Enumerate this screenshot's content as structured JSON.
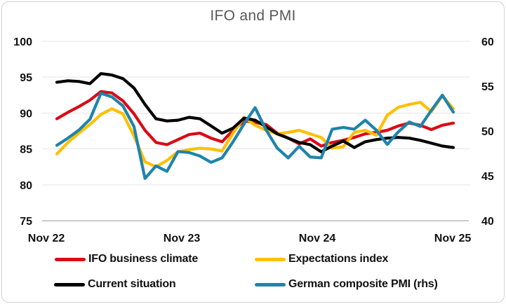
{
  "title": "IFO and PMI",
  "chart_data": {
    "type": "line",
    "title": "IFO and PMI",
    "x": [
      "Nov 22",
      "Dec 22",
      "Jan 23",
      "Feb 23",
      "Mar 23",
      "Apr 23",
      "May 23",
      "Jun 23",
      "Jul 23",
      "Aug 23",
      "Sep 23",
      "Oct 23",
      "Nov 23",
      "Dec 23",
      "Jan 24",
      "Feb 24",
      "Mar 24",
      "Apr 24",
      "May 24",
      "Jun 24",
      "Jul 24",
      "Aug 24",
      "Sep 24",
      "Oct 24",
      "Nov 24",
      "Dec 24",
      "Jan 25",
      "Feb 25",
      "Mar 25",
      "Apr 25",
      "May 25",
      "Jun 25",
      "Jul 25",
      "Aug 25",
      "Sep 25",
      "Oct 25",
      "Nov 25"
    ],
    "x_axis_tick_labels": [
      "Nov 22",
      "Nov 23",
      "Nov 24",
      "Nov 25"
    ],
    "left_axis": {
      "label": "",
      "min": 75,
      "max": 100,
      "step": 5,
      "tick_labels": [
        "75",
        "80",
        "85",
        "90",
        "95",
        "100"
      ]
    },
    "right_axis": {
      "label": "",
      "min": 40,
      "max": 60,
      "step": 5,
      "tick_labels": [
        "40",
        "45",
        "50",
        "55",
        "60"
      ]
    },
    "grid": "horizontal, light gray",
    "legend_position": "bottom, two rows",
    "series": [
      {
        "name": "IFO business climate",
        "axis": "left",
        "color": "#DB0A16",
        "values": [
          89.2,
          90.1,
          90.9,
          91.8,
          93.0,
          92.8,
          91.7,
          89.9,
          87.6,
          85.9,
          85.6,
          86.3,
          87.0,
          87.2,
          86.5,
          86.0,
          87.6,
          88.9,
          88.7,
          88.4,
          87.2,
          86.5,
          85.7,
          86.4,
          85.4,
          85.9,
          86.2,
          86.6,
          87.1,
          87.3,
          87.6,
          88.2,
          88.6,
          88.3,
          87.7,
          88.3,
          88.6
        ]
      },
      {
        "name": "Expectations index",
        "axis": "left",
        "color": "#FFC000",
        "values": [
          84.3,
          85.9,
          87.2,
          88.4,
          89.8,
          90.6,
          89.9,
          86.8,
          83.2,
          82.5,
          83.4,
          84.6,
          84.9,
          85.1,
          85.0,
          84.7,
          87.2,
          89.4,
          88.3,
          87.6,
          87.1,
          87.3,
          87.6,
          87.1,
          86.6,
          85.1,
          85.3,
          87.3,
          87.6,
          86.9,
          89.7,
          90.8,
          91.2,
          91.5,
          90.2,
          92.4,
          90.6
        ]
      },
      {
        "name": "Current situation",
        "axis": "left",
        "color": "#000000",
        "values": [
          94.3,
          94.5,
          94.4,
          94.1,
          95.5,
          95.3,
          94.8,
          93.5,
          91.2,
          89.2,
          88.9,
          89.0,
          89.4,
          89.2,
          88.2,
          87.2,
          87.9,
          89.3,
          89.0,
          88.1,
          87.1,
          86.5,
          85.9,
          85.6,
          84.6,
          85.4,
          86.1,
          85.2,
          86.0,
          86.3,
          86.5,
          86.6,
          86.5,
          86.2,
          85.8,
          85.4,
          85.2
        ]
      },
      {
        "name": "German composite PMI (rhs)",
        "axis": "right",
        "color": "#1E84AC",
        "values": [
          48.4,
          49.2,
          50.1,
          51.3,
          54.2,
          53.8,
          52.8,
          50.5,
          44.7,
          46.1,
          45.5,
          47.7,
          47.6,
          47.2,
          46.5,
          47.0,
          48.8,
          50.8,
          52.6,
          50.1,
          48.1,
          47.0,
          48.3,
          47.1,
          47.0,
          50.2,
          50.4,
          50.2,
          51.2,
          50.1,
          48.5,
          49.9,
          51.0,
          50.5,
          52.3,
          54.0,
          52.1
        ]
      }
    ]
  },
  "colors": {
    "title_text": "#595959",
    "tick_text": "#111111",
    "gridline": "#E5E5E5",
    "axis_line": "#B9B9B9",
    "frame_border": "#D2D2D2",
    "background": "#FFFFFF"
  }
}
